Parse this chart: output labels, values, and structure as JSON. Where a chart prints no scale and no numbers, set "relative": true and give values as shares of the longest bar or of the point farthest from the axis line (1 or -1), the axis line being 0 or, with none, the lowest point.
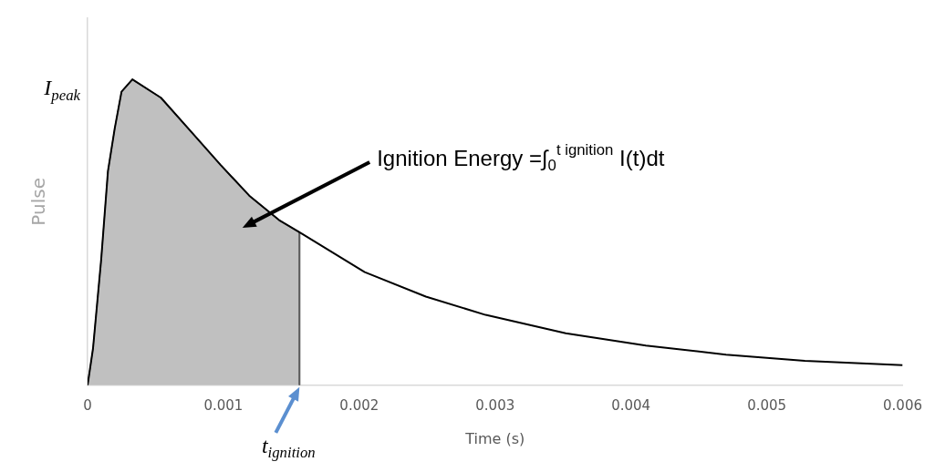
{
  "chart_data": {
    "type": "line",
    "relative": true,
    "xlabel": "Time (s)",
    "ylabel": "Pulse",
    "xlim": [
      0,
      0.006
    ],
    "xticks": [
      0,
      0.001,
      0.002,
      0.003,
      0.004,
      0.005,
      0.006
    ],
    "grid": false,
    "legend": false,
    "marker": "none",
    "series": [
      {
        "type": "area",
        "color": "#c0c0c0",
        "x": [
          0,
          4e-05,
          0.0001,
          0.00015,
          0.0002,
          0.00025,
          0.00033,
          0.00054,
          0.00076,
          0.00098,
          0.00119,
          0.00141,
          0.00156,
          0.00156
        ],
        "values": [
          0,
          0.12,
          0.41,
          0.7,
          0.84,
          0.96,
          1,
          0.94,
          0.83,
          0.72,
          0.62,
          0.54,
          0.5,
          0
        ]
      },
      {
        "type": "line",
        "color": "#595959",
        "x": [
          0.00156,
          0.00156
        ],
        "values": [
          0,
          0.5
        ]
      },
      {
        "color": "#000000",
        "x": [
          0,
          4e-05,
          0.0001,
          0.00015,
          0.0002,
          0.00025,
          0.00033,
          0.00054,
          0.00076,
          0.00098,
          0.00119,
          0.00141,
          0.00156,
          0.00204,
          0.00249,
          0.00293,
          0.00352,
          0.00411,
          0.0047,
          0.00528,
          0.006
        ],
        "values": [
          0,
          0.12,
          0.41,
          0.7,
          0.84,
          0.96,
          1,
          0.94,
          0.83,
          0.72,
          0.62,
          0.54,
          0.5,
          0.37,
          0.29,
          0.23,
          0.17,
          0.13,
          0.1,
          0.08,
          0.066
        ]
      }
    ],
    "annotations": [
      "I$_{peak}$",
      {
        "text": "t$_{ignition}$",
        "x": 0.00156,
        "y": 0
      },
      "Ignition Energy =∫$_{0}$$^{t ignition}$ I(t)dt"
    ]
  }
}
